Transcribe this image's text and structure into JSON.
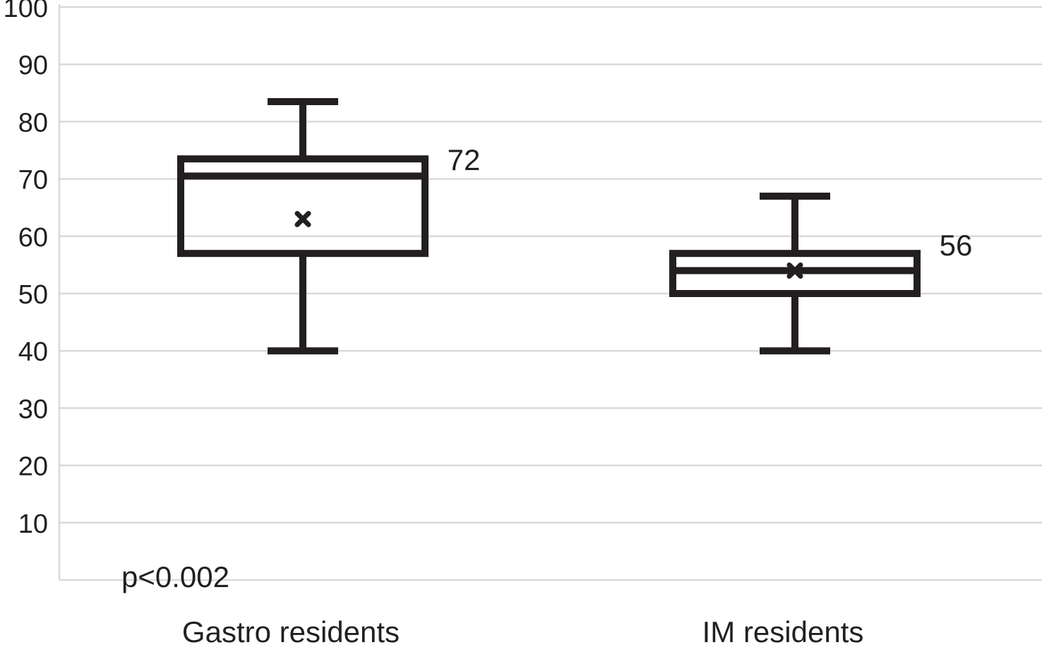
{
  "chart_data": {
    "type": "box",
    "title": "",
    "xlabel": "",
    "ylabel": "",
    "ylim": [
      0,
      100
    ],
    "yticks": [
      10,
      20,
      30,
      40,
      50,
      60,
      70,
      80,
      90,
      100
    ],
    "grid": true,
    "categories": [
      "Gastro residents",
      "IM residents"
    ],
    "boxes": [
      {
        "category": "Gastro residents",
        "min": 40,
        "q1": 57,
        "median": 70.5,
        "q3": 73.5,
        "max": 83.5,
        "mean": 63,
        "label": "72"
      },
      {
        "category": "IM residents",
        "min": 40,
        "q1": 50,
        "median": 54,
        "q3": 57,
        "max": 67,
        "mean": 54,
        "label": "56"
      }
    ],
    "annotation": "p<0.002",
    "colors": {
      "box": "#231f20",
      "grid": "#d9d9d9"
    }
  }
}
